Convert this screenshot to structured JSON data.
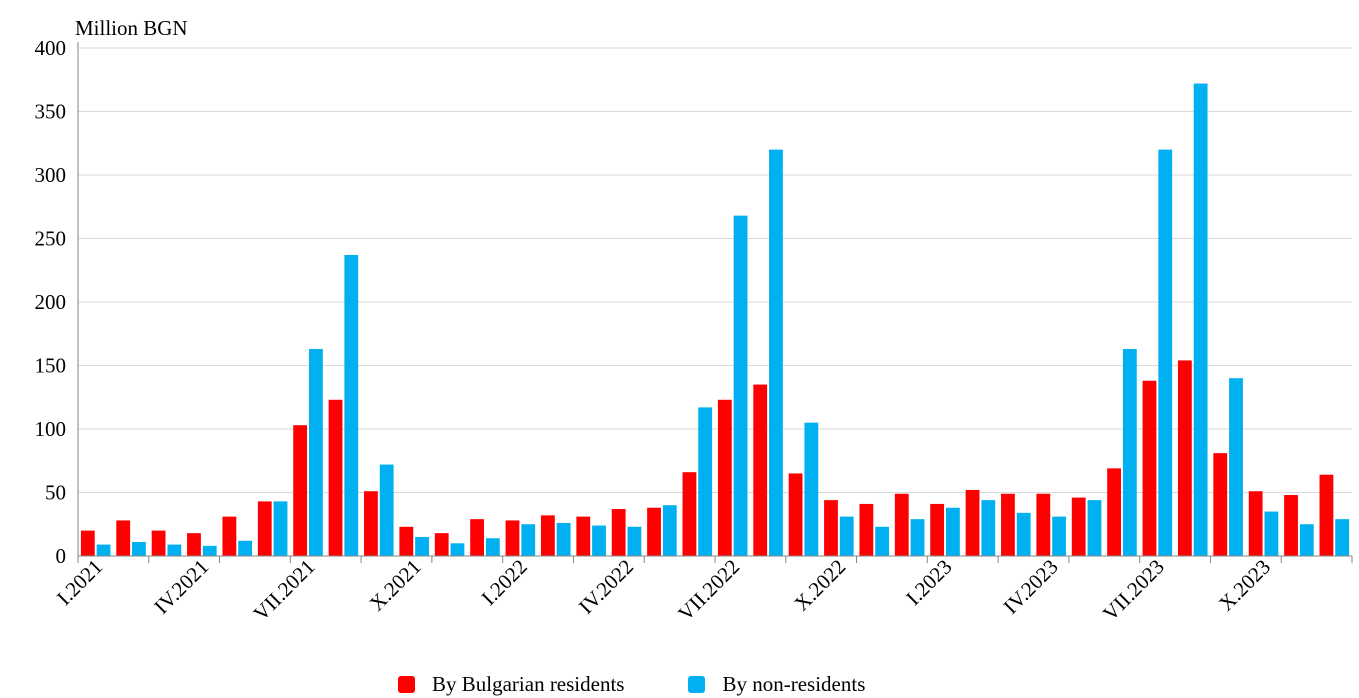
{
  "chart_data": {
    "type": "bar",
    "unit_label": "Million  BGN",
    "ylim": [
      0,
      400
    ],
    "yticks": [
      "0",
      "50",
      "100",
      "150",
      "200",
      "250",
      "300",
      "350",
      "400"
    ],
    "ytick_values": [
      0,
      50,
      100,
      150,
      200,
      250,
      300,
      350,
      400
    ],
    "grid": "horizontal",
    "legend_position": "bottom",
    "x_tick_labels": [
      "I.2021",
      "IV.2021",
      "VII.2021",
      "X.2021",
      "I.2022",
      "IV.2022",
      "VII.2022",
      "X.2022",
      "I.2023",
      "IV.2023",
      "VII.2023",
      "X.2023"
    ],
    "x_tick_label_every": 3,
    "months": 36,
    "series": [
      {
        "name": "By Bulgarian residents",
        "color": "#ff0000",
        "values": [
          20,
          28,
          20,
          18,
          31,
          43,
          103,
          123,
          51,
          23,
          18,
          29,
          28,
          32,
          31,
          37,
          38,
          66,
          123,
          135,
          65,
          44,
          41,
          49,
          41,
          52,
          49,
          49,
          46,
          69,
          138,
          154,
          81,
          51,
          48,
          64
        ]
      },
      {
        "name": "By non-residents",
        "color": "#00b0f0",
        "values": [
          9,
          11,
          9,
          8,
          12,
          43,
          163,
          237,
          72,
          15,
          10,
          14,
          25,
          26,
          24,
          23,
          40,
          117,
          268,
          320,
          105,
          31,
          23,
          29,
          38,
          44,
          34,
          31,
          44,
          163,
          320,
          372,
          140,
          35,
          25,
          29
        ]
      }
    ]
  }
}
